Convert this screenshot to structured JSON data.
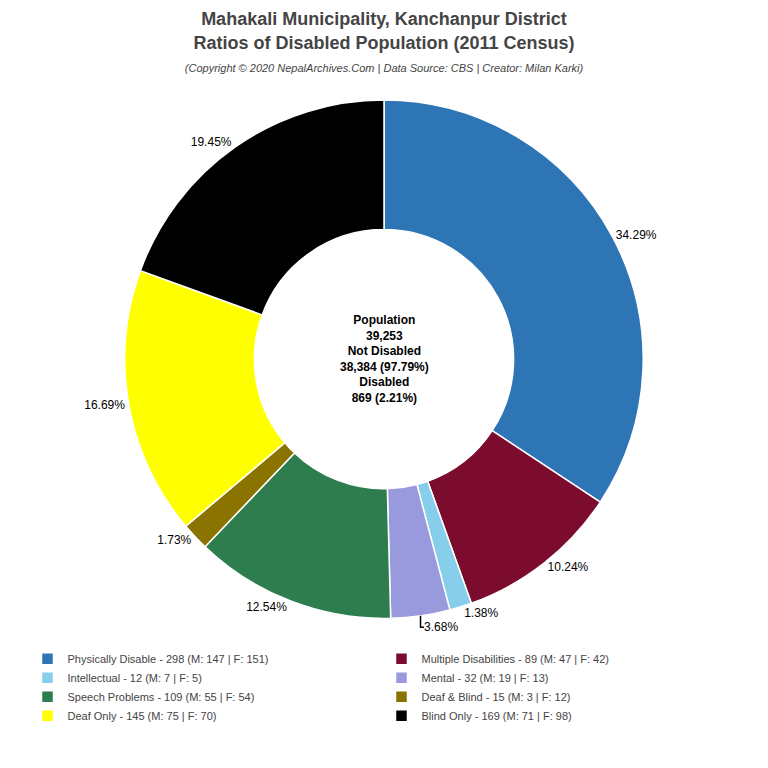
{
  "chart_data": {
    "type": "pie",
    "title": [
      "Mahakali Municipality, Kanchanpur District",
      "Ratios of Disabled Population (2011 Census)"
    ],
    "subtitle": "(Copyright © 2020 NepalArchives.Com | Data Source: CBS | Creator: Milan Karki)",
    "annotations": [
      "Population",
      "39,253",
      "Not Disabled",
      "38,384 (97.79%)",
      "Disabled",
      "869 (2.21%)"
    ],
    "categories": [
      "Physically Disable - 298 (M: 147 | F: 151)",
      "Multiple Disabilities - 89 (M: 47 | F: 42)",
      "Intellectual - 12 (M: 7 | F: 5)",
      "Mental - 32 (M: 19 | F: 13)",
      "Speech Problems - 109 (M: 55 | F: 54)",
      "Deaf & Blind - 15 (M: 3 | F: 12)",
      "Deaf Only - 145 (M: 75 | F: 70)",
      "Blind Only - 169 (M: 71 | F: 98)"
    ],
    "values": [
      34.29,
      10.24,
      1.38,
      3.68,
      12.54,
      1.73,
      16.69,
      19.45
    ],
    "value_labels": [
      "34.29%",
      "10.24%",
      "1.38%",
      "3.68%",
      "12.54%",
      "1.73%",
      "16.69%",
      "19.45%"
    ],
    "colors": [
      "#2e75b6",
      "#7b0c2e",
      "#87ceeb",
      "#9999dd",
      "#2e7d4f",
      "#8b7300",
      "#ffff00",
      "#000000"
    ],
    "data_labels": true,
    "legend": "bottom"
  }
}
